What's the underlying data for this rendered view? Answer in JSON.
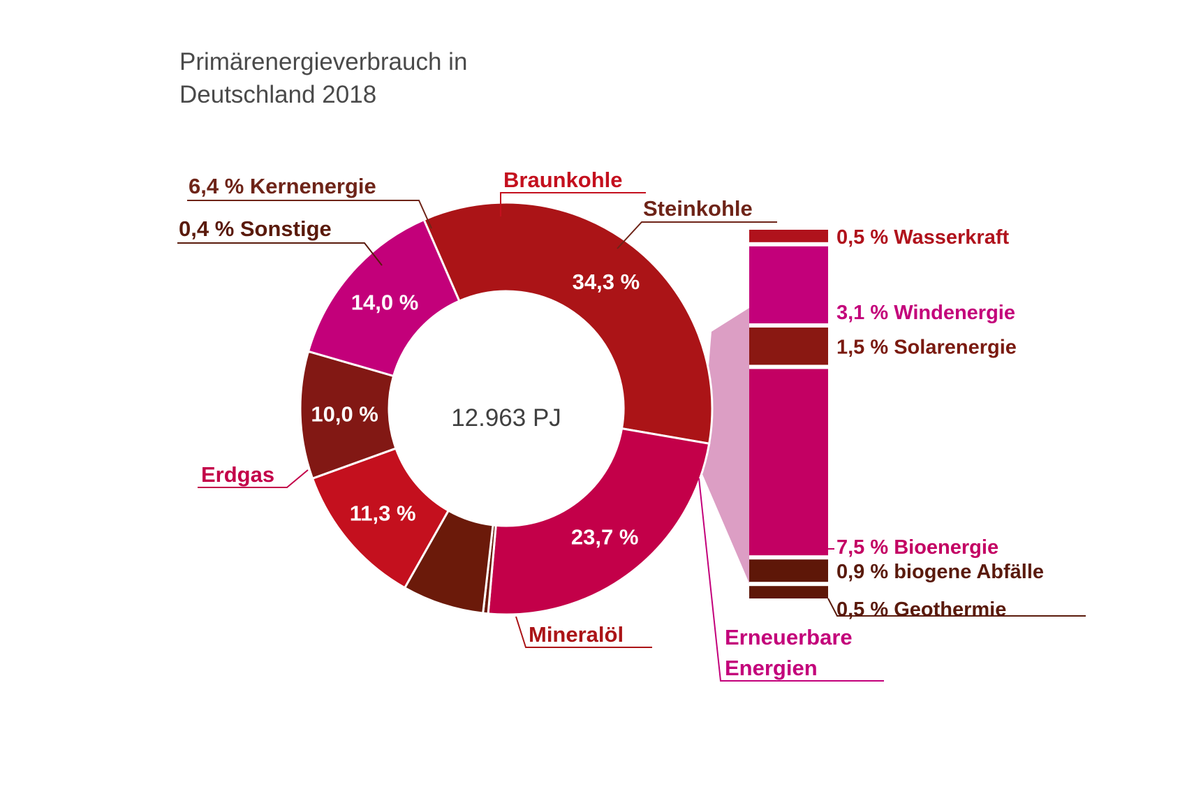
{
  "chart_data": {
    "type": "pie",
    "title_lines": [
      "Primärenergieverbrauch in",
      "Deutschland 2018"
    ],
    "center_label": "12.963 PJ",
    "slices": [
      {
        "name": "Braunkohle",
        "value": 11.3,
        "value_label": "11,3 %",
        "color": "#c4101e",
        "label_color": "#c4101e"
      },
      {
        "name": "Steinkohle",
        "value": 10.0,
        "value_label": "10,0 %",
        "color": "#821814",
        "label_color": "#6e2418"
      },
      {
        "name": "Erneuerbare Energien",
        "value": 14.0,
        "value_label": "14,0 %",
        "color": "#c3007a",
        "label_color": "#c3007a"
      },
      {
        "name": "Mineralöl",
        "value": 34.3,
        "value_label": "34,3 %",
        "color": "#ab1417",
        "label_color": "#ab1417"
      },
      {
        "name": "Erdgas",
        "value": 23.7,
        "value_label": "23,7 %",
        "color": "#c30049",
        "label_color": "#c30049"
      },
      {
        "name": "Sonstige",
        "value": 0.4,
        "value_label": "",
        "color": "#6b1a0a",
        "label_color": "#5a1a0c"
      },
      {
        "name": "Kernenergie",
        "value": 6.4,
        "value_label": "",
        "color": "#6b1a0a",
        "label_color": "#6e2418"
      }
    ],
    "outer_labels": {
      "kernenergie": "6,4 % Kernenergie",
      "sonstige": "0,4 % Sonstige",
      "braunkohle": "Braunkohle",
      "steinkohle": "Steinkohle",
      "erdgas": "Erdgas",
      "mineraloel": "Mineralöl",
      "erneuerbare_line1": "Erneuerbare",
      "erneuerbare_line2": "Energien"
    },
    "breakdown": {
      "type": "stacked-bar",
      "parent": "Erneuerbare Energien",
      "segments": [
        {
          "name": "Wasserkraft",
          "value": 0.5,
          "label": "0,5 % Wasserkraft",
          "color": "#b0121c",
          "label_color": "#b0121c"
        },
        {
          "name": "Windenergie",
          "value": 3.1,
          "label": "3,1 % Windenergie",
          "color": "#c3007a",
          "label_color": "#c3007a"
        },
        {
          "name": "Solarenergie",
          "value": 1.5,
          "label": "1,5 % Solarenergie",
          "color": "#8a1812",
          "label_color": "#7a1a10"
        },
        {
          "name": "Bioenergie",
          "value": 7.5,
          "label": "7,5 % Bioenergie",
          "color": "#c30063",
          "label_color": "#c30063"
        },
        {
          "name": "biogene Abfälle",
          "value": 0.9,
          "label": "0,9 % biogene Abfälle",
          "color": "#5e1708",
          "label_color": "#5a1a0c"
        },
        {
          "name": "Geothermie",
          "value": 0.5,
          "label": "0,5 % Geothermie",
          "color": "#5e1708",
          "label_color": "#5a1a0c"
        }
      ]
    }
  }
}
